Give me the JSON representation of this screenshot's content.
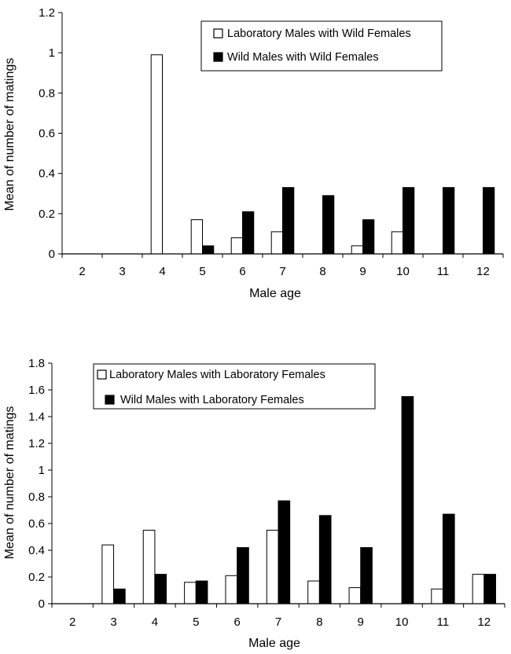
{
  "chart_data": [
    {
      "type": "bar",
      "title": "",
      "xlabel": "Male age",
      "ylabel": "Mean of number of matings",
      "ylim": [
        0,
        1.2
      ],
      "yticks": [
        "0",
        "0.2",
        "0.4",
        "0.6",
        "0.8",
        "1",
        "1.2"
      ],
      "yticks_values": [
        0,
        0.2,
        0.4,
        0.6,
        0.8,
        1.0,
        1.2
      ],
      "categories": [
        "2",
        "3",
        "4",
        "5",
        "6",
        "7",
        "8",
        "9",
        "10",
        "11",
        "12"
      ],
      "legend_position": "top-right",
      "series": [
        {
          "name": "Laboratory Males with Wild Females",
          "fill": "#ffffff",
          "values": [
            0,
            0,
            0.99,
            0.17,
            0.08,
            0.11,
            0,
            0.04,
            0.11,
            0,
            0
          ]
        },
        {
          "name": "Wild Males with Wild Females",
          "fill": "#000000",
          "values": [
            0,
            0,
            0,
            0.04,
            0.21,
            0.33,
            0.29,
            0.17,
            0.33,
            0.33,
            0.33
          ]
        }
      ]
    },
    {
      "type": "bar",
      "title": "",
      "xlabel": "Male age",
      "ylabel": "Mean of number of matings",
      "ylim": [
        0,
        1.8
      ],
      "yticks": [
        "0",
        "0.2",
        "0.4",
        "0.6",
        "0.8",
        "1",
        "1.2",
        "1.4",
        "1.6",
        "1.8"
      ],
      "yticks_values": [
        0,
        0.2,
        0.4,
        0.6,
        0.8,
        1.0,
        1.2,
        1.4,
        1.6,
        1.8
      ],
      "categories": [
        "2",
        "3",
        "4",
        "5",
        "6",
        "7",
        "8",
        "9",
        "10",
        "11",
        "12"
      ],
      "legend_position": "top-left",
      "series": [
        {
          "name": "Laboratory Males with Laboratory Females",
          "fill": "#ffffff",
          "values": [
            0,
            0.44,
            0.55,
            0.16,
            0.21,
            0.55,
            0.17,
            0.12,
            0,
            0.11,
            0.22
          ]
        },
        {
          "name": "Wild Males with Laboratory Females",
          "fill": "#000000",
          "values": [
            0,
            0.11,
            0.22,
            0.17,
            0.42,
            0.77,
            0.66,
            0.42,
            1.55,
            0.67,
            0.22
          ]
        }
      ]
    }
  ]
}
